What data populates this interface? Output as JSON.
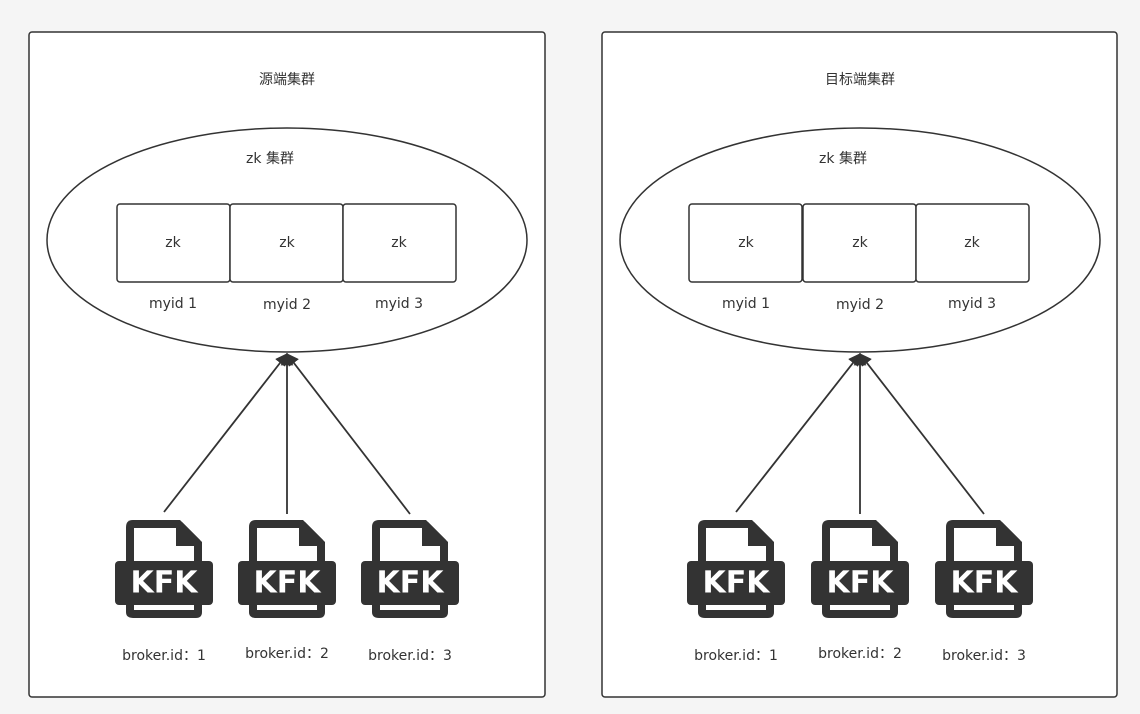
{
  "colors": {
    "background": "#f5f5f5",
    "frame_fill": "#ffffff",
    "stroke": "#333333",
    "icon": "#333333"
  },
  "clusters": [
    {
      "title": "源端集群",
      "zk_group_label": "zk 集群",
      "zk_nodes": [
        {
          "label": "zk",
          "myid": "myid 1"
        },
        {
          "label": "zk",
          "myid": "myid 2"
        },
        {
          "label": "zk",
          "myid": "myid 3"
        }
      ],
      "brokers": [
        {
          "icon": "kafka-file-icon",
          "icon_text": "KFK",
          "label": "broker.id：1"
        },
        {
          "icon": "kafka-file-icon",
          "icon_text": "KFK",
          "label": "broker.id：2"
        },
        {
          "icon": "kafka-file-icon",
          "icon_text": "KFK",
          "label": "broker.id：3"
        }
      ]
    },
    {
      "title": "目标端集群",
      "zk_group_label": "zk 集群",
      "zk_nodes": [
        {
          "label": "zk",
          "myid": "myid 1"
        },
        {
          "label": "zk",
          "myid": "myid 2"
        },
        {
          "label": "zk",
          "myid": "myid 3"
        }
      ],
      "brokers": [
        {
          "icon": "kafka-file-icon",
          "icon_text": "KFK",
          "label": "broker.id：1"
        },
        {
          "icon": "kafka-file-icon",
          "icon_text": "KFK",
          "label": "broker.id：2"
        },
        {
          "icon": "kafka-file-icon",
          "icon_text": "KFK",
          "label": "broker.id：3"
        }
      ]
    }
  ]
}
